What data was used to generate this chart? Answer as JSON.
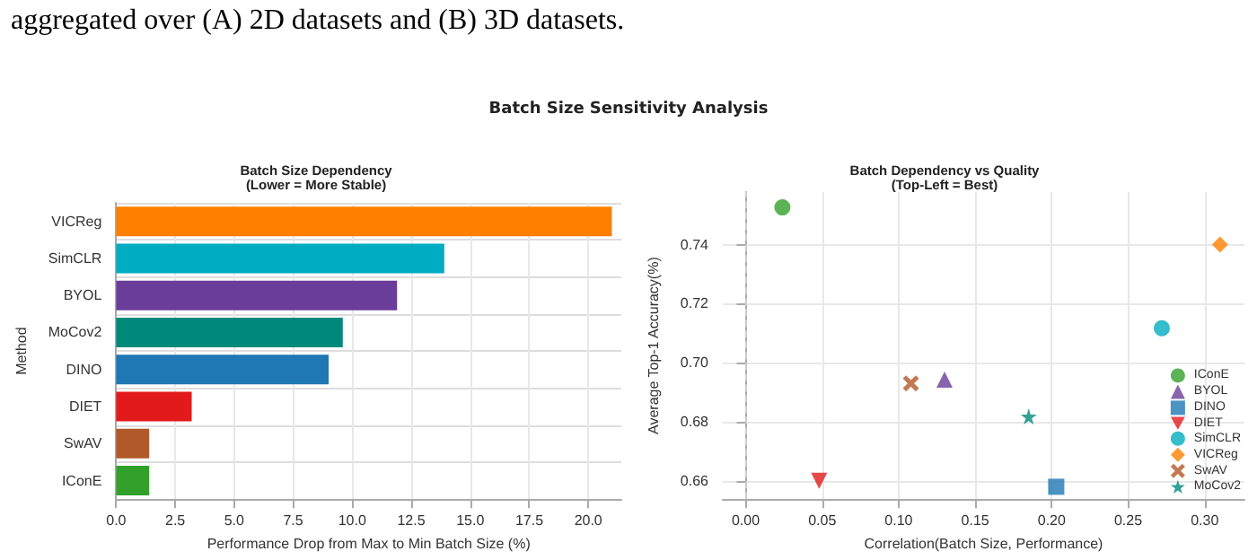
{
  "chart_data": [
    {
      "type": "bar",
      "orientation": "horizontal",
      "title": "Batch Size Dependency\n(Lower = More Stable)",
      "annotations": [
        "aggregated over (A) 2D datasets and (B) 3D datasets.",
        "Batch Size Sensitivity Analysis"
      ],
      "xlabel": "Performance Drop from Max to Min Batch Size (%)",
      "ylabel": "Method",
      "categories": [
        "VICReg",
        "SimCLR",
        "BYOL",
        "MoCov2",
        "DINO",
        "DIET",
        "SwAV",
        "IConE"
      ],
      "values": [
        21.0,
        13.9,
        11.9,
        9.6,
        9.0,
        3.2,
        1.4,
        1.4
      ],
      "colors": [
        "#ff7f00",
        "#00acc1",
        "#6a3d9a",
        "#00897b",
        "#1f77b4",
        "#e31a1c",
        "#b15928",
        "#33a02c"
      ],
      "xlim": [
        0,
        21.4
      ],
      "xticks": [
        {
          "value": 0,
          "label": "0.0"
        },
        {
          "value": 2.5,
          "label": "2.5"
        },
        {
          "value": 5,
          "label": "5.0"
        },
        {
          "value": 7.5,
          "label": "7.5"
        },
        {
          "value": 10,
          "label": "10.0"
        },
        {
          "value": 12.5,
          "label": "12.5"
        },
        {
          "value": 15,
          "label": "15.0"
        },
        {
          "value": 17.5,
          "label": "17.5"
        },
        {
          "value": 20,
          "label": "20.0"
        }
      ],
      "grid": true
    },
    {
      "type": "scatter",
      "title": "Batch Dependency vs Quality\n(Top-Left = Best)",
      "xlabel": "Correlation(Batch Size, Performance)",
      "ylabel": "Average Top-1 Accuracy(%)",
      "series": [
        {
          "name": "IConE",
          "color": "#33a02c",
          "marker": "circle",
          "x": [
            0.024
          ],
          "values": [
            0.7526
          ]
        },
        {
          "name": "BYOL",
          "color": "#6a3d9a",
          "marker": "triangle",
          "x": [
            0.13
          ],
          "values": [
            0.6943
          ]
        },
        {
          "name": "DINO",
          "color": "#1f77b4",
          "marker": "square",
          "x": [
            0.203
          ],
          "values": [
            0.658
          ]
        },
        {
          "name": "DIET",
          "color": "#e31a1c",
          "marker": "triangle_down",
          "x": [
            0.048
          ],
          "values": [
            0.66
          ]
        },
        {
          "name": "SimCLR",
          "color": "#00acc1",
          "x": [
            0.272
          ],
          "values": [
            0.7117
          ]
        },
        {
          "name": "VICReg",
          "color": "#ff7f00",
          "marker": "diamond",
          "x": [
            0.31
          ],
          "values": [
            0.74
          ]
        },
        {
          "name": "SwAV",
          "color": "#b15928",
          "marker": "cross",
          "x": [
            0.108
          ],
          "values": [
            0.693
          ]
        },
        {
          "name": "MoCov2",
          "color": "#00897b",
          "marker": "star",
          "x": [
            0.185
          ],
          "values": [
            0.6818
          ]
        }
      ],
      "xlim": [
        -0.015,
        0.326
      ],
      "ylim": [
        0.6538,
        0.7578
      ],
      "xticks": [
        {
          "value": 0,
          "label": "0.00"
        },
        {
          "value": 0.05,
          "label": "0.05"
        },
        {
          "value": 0.1,
          "label": "0.10"
        },
        {
          "value": 0.15,
          "label": "0.15"
        },
        {
          "value": 0.2,
          "label": "0.20"
        },
        {
          "value": 0.25,
          "label": "0.25"
        },
        {
          "value": 0.3,
          "label": "0.30"
        }
      ],
      "yticks": [
        {
          "value": 0.66,
          "label": "0.66"
        },
        {
          "value": 0.68,
          "label": "0.68"
        },
        {
          "value": 0.7,
          "label": "0.70"
        },
        {
          "value": 0.72,
          "label": "0.72"
        },
        {
          "value": 0.74,
          "label": "0.74"
        }
      ],
      "ref_lines": [
        {
          "axis": "x",
          "value": 0,
          "color": "#cccccc",
          "line_style": "dashed"
        }
      ],
      "legend": "right",
      "grid": true
    }
  ]
}
